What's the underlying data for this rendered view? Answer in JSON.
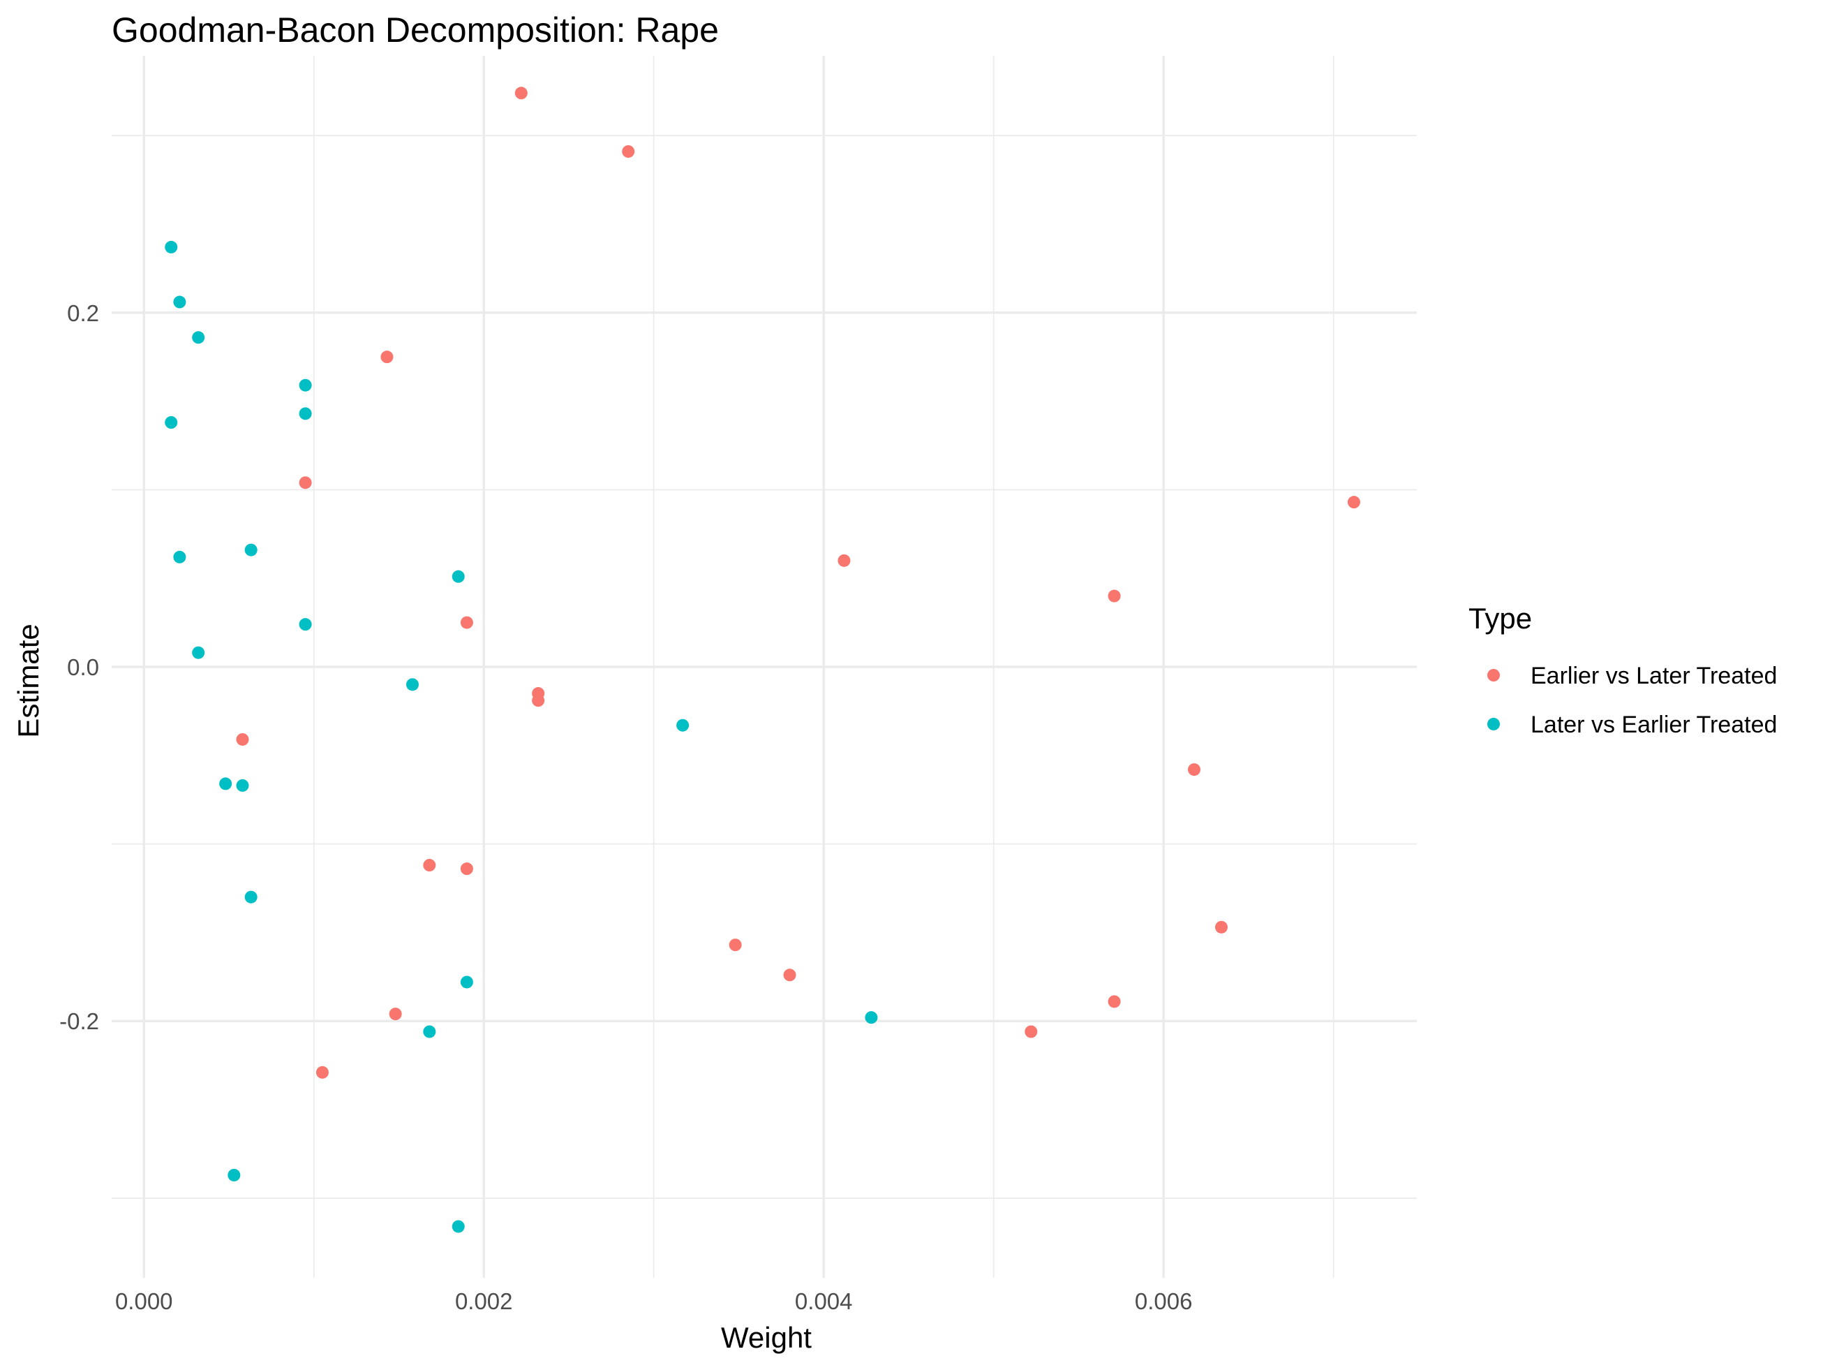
{
  "chart_data": {
    "type": "scatter",
    "title": "Goodman-Bacon Decomposition: Rape",
    "xlabel": "Weight",
    "ylabel": "Estimate",
    "xlim": [
      -0.00019,
      0.00749
    ],
    "ylim": [
      -0.345,
      0.345
    ],
    "x_ticks": [
      0.0,
      0.002,
      0.004,
      0.006
    ],
    "x_tick_labels": [
      "0.000",
      "0.002",
      "0.004",
      "0.006"
    ],
    "y_ticks": [
      -0.2,
      0.0,
      0.2
    ],
    "y_tick_labels": [
      "-0.2",
      "0.0",
      "0.2"
    ],
    "grid": true,
    "legend": {
      "title": "Type",
      "position": "right"
    },
    "series": [
      {
        "name": "Earlier vs Later Treated",
        "color": "#F8766D",
        "points": [
          [
            0.00222,
            0.324
          ],
          [
            0.00285,
            0.291
          ],
          [
            0.00143,
            0.175
          ],
          [
            0.00095,
            0.104
          ],
          [
            0.00712,
            0.093
          ],
          [
            0.00412,
            0.06
          ],
          [
            0.00571,
            0.04
          ],
          [
            0.0019,
            0.025
          ],
          [
            0.00232,
            -0.015
          ],
          [
            0.00232,
            -0.019
          ],
          [
            0.00058,
            -0.041
          ],
          [
            0.00618,
            -0.058
          ],
          [
            0.00168,
            -0.112
          ],
          [
            0.0019,
            -0.114
          ],
          [
            0.00634,
            -0.147
          ],
          [
            0.00348,
            -0.157
          ],
          [
            0.0038,
            -0.174
          ],
          [
            0.00571,
            -0.189
          ],
          [
            0.00148,
            -0.196
          ],
          [
            0.00522,
            -0.206
          ],
          [
            0.00105,
            -0.229
          ]
        ]
      },
      {
        "name": "Later vs Earlier Treated",
        "color": "#00BFC4",
        "points": [
          [
            0.00016,
            0.237
          ],
          [
            0.00021,
            0.206
          ],
          [
            0.00032,
            0.186
          ],
          [
            0.00095,
            0.159
          ],
          [
            0.00095,
            0.143
          ],
          [
            0.00016,
            0.138
          ],
          [
            0.00063,
            0.066
          ],
          [
            0.00021,
            0.062
          ],
          [
            0.00185,
            0.051
          ],
          [
            0.00095,
            0.024
          ],
          [
            0.00032,
            0.008
          ],
          [
            0.00158,
            -0.01
          ],
          [
            0.00317,
            -0.033
          ],
          [
            0.00048,
            -0.066
          ],
          [
            0.00058,
            -0.067
          ],
          [
            0.00063,
            -0.13
          ],
          [
            0.0019,
            -0.178
          ],
          [
            0.00428,
            -0.198
          ],
          [
            0.00168,
            -0.206
          ],
          [
            0.00053,
            -0.287
          ],
          [
            0.00185,
            -0.316
          ]
        ]
      }
    ]
  }
}
